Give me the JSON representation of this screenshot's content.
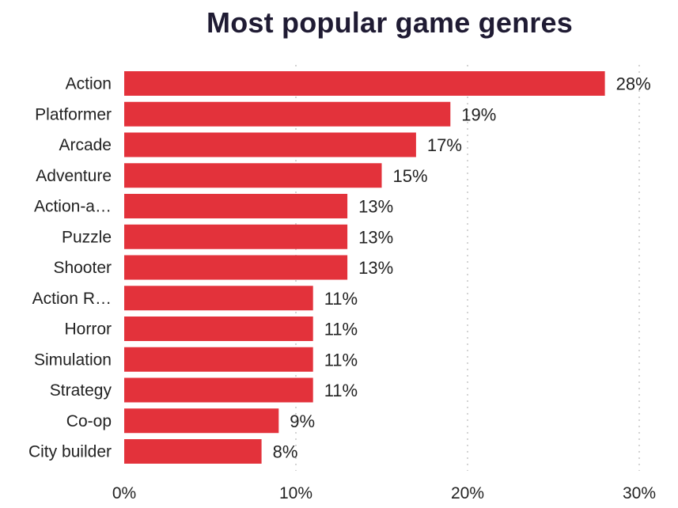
{
  "chart_data": {
    "type": "bar",
    "orientation": "horizontal",
    "title": "Most popular game genres",
    "xlabel": "",
    "ylabel": "",
    "categories": [
      "Action",
      "Platformer",
      "Arcade",
      "Adventure",
      "Action-a…",
      "Puzzle",
      "Shooter",
      "Action R…",
      "Horror",
      "Simulation",
      "Strategy",
      "Co-op",
      "City builder"
    ],
    "values": [
      28,
      19,
      17,
      15,
      13,
      13,
      13,
      11,
      11,
      11,
      11,
      9,
      8
    ],
    "value_labels": [
      "28%",
      "19%",
      "17%",
      "15%",
      "13%",
      "13%",
      "13%",
      "11%",
      "11%",
      "11%",
      "11%",
      "9%",
      "8%"
    ],
    "xlim": [
      0,
      30
    ],
    "x_ticks": [
      0,
      10,
      20,
      30
    ],
    "x_tick_labels": [
      "0%",
      "10%",
      "20%",
      "30%"
    ],
    "grid": true,
    "bar_color": "#e3323b"
  }
}
